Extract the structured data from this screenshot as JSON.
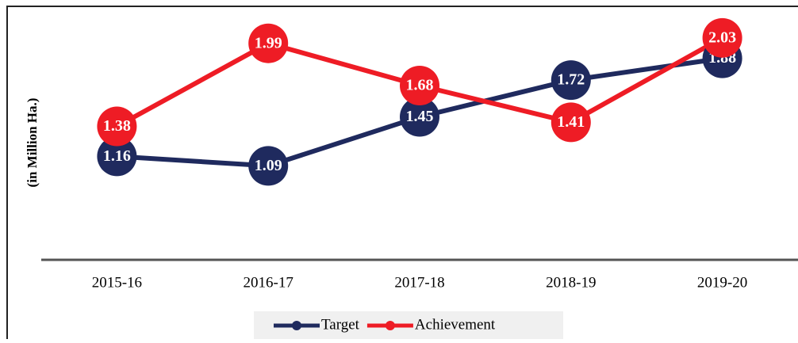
{
  "chart_data": {
    "type": "line",
    "y_label": "(in Million Ha.)",
    "categories": [
      "2015-16",
      "2016-17",
      "2017-18",
      "2018-19",
      "2019-20"
    ],
    "series": [
      {
        "name": "Target",
        "color": "#1f2a5e",
        "values": [
          1.16,
          1.09,
          1.45,
          1.72,
          1.88
        ]
      },
      {
        "name": "Achievement",
        "color": "#ee1c25",
        "values": [
          1.38,
          1.99,
          1.68,
          1.41,
          2.03
        ]
      }
    ],
    "ylim": [
      0.4,
      2.25
    ],
    "legend": "bottom"
  }
}
